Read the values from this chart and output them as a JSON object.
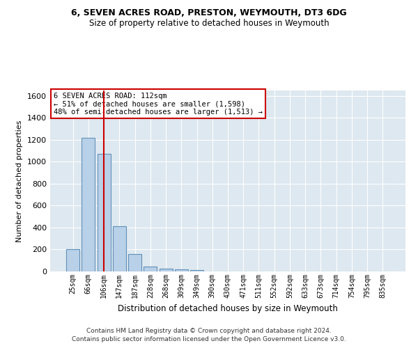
{
  "title1": "6, SEVEN ACRES ROAD, PRESTON, WEYMOUTH, DT3 6DG",
  "title2": "Size of property relative to detached houses in Weymouth",
  "xlabel": "Distribution of detached houses by size in Weymouth",
  "ylabel": "Number of detached properties",
  "footer1": "Contains HM Land Registry data © Crown copyright and database right 2024.",
  "footer2": "Contains public sector information licensed under the Open Government Licence v3.0.",
  "annotation_line1": "6 SEVEN ACRES ROAD: 112sqm",
  "annotation_line2": "← 51% of detached houses are smaller (1,598)",
  "annotation_line3": "48% of semi-detached houses are larger (1,513) →",
  "bar_color": "#b8d0e8",
  "bar_edge_color": "#6090b8",
  "marker_color": "#cc0000",
  "annotation_box_color": "#cc0000",
  "background_color": "#dde8f0",
  "bins": [
    "25sqm",
    "66sqm",
    "106sqm",
    "147sqm",
    "187sqm",
    "228sqm",
    "268sqm",
    "309sqm",
    "349sqm",
    "390sqm",
    "430sqm",
    "471sqm",
    "511sqm",
    "552sqm",
    "592sqm",
    "633sqm",
    "673sqm",
    "714sqm",
    "754sqm",
    "795sqm",
    "835sqm"
  ],
  "values": [
    205,
    1220,
    1075,
    410,
    160,
    45,
    25,
    18,
    15,
    0,
    0,
    0,
    0,
    0,
    0,
    0,
    0,
    0,
    0,
    0,
    0
  ],
  "marker_bin_index": 2,
  "ylim": [
    0,
    1650
  ],
  "yticks": [
    0,
    200,
    400,
    600,
    800,
    1000,
    1200,
    1400,
    1600
  ]
}
